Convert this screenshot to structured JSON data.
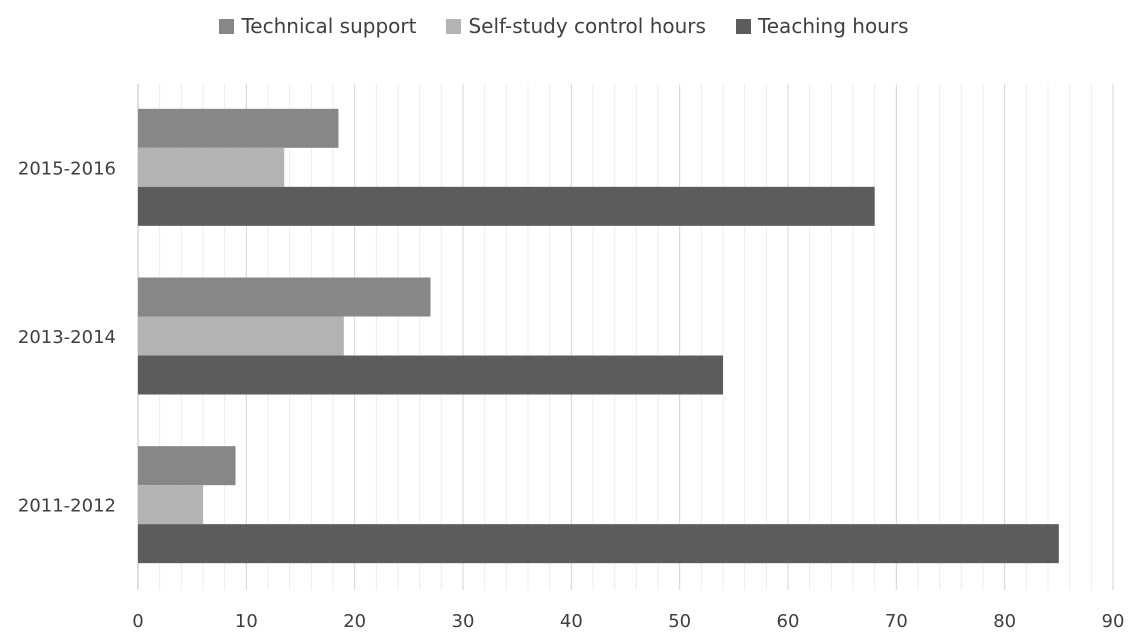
{
  "chart_data": {
    "type": "bar",
    "orientation": "horizontal",
    "categories": [
      "2015-2016",
      "2013-2014",
      "2011-2012"
    ],
    "series": [
      {
        "name": "Technical support",
        "color": "#878787",
        "values": [
          18.5,
          27,
          9
        ]
      },
      {
        "name": "Self-study control hours",
        "color": "#b3b3b3",
        "values": [
          13.5,
          19,
          6
        ]
      },
      {
        "name": "Teaching hours",
        "color": "#5c5c5c",
        "values": [
          68,
          54,
          85
        ]
      }
    ],
    "xlim": [
      0,
      90
    ],
    "x_ticks": [
      0,
      10,
      20,
      30,
      40,
      50,
      60,
      70,
      80,
      90
    ],
    "grid": "vertical",
    "legend_position": "top"
  }
}
